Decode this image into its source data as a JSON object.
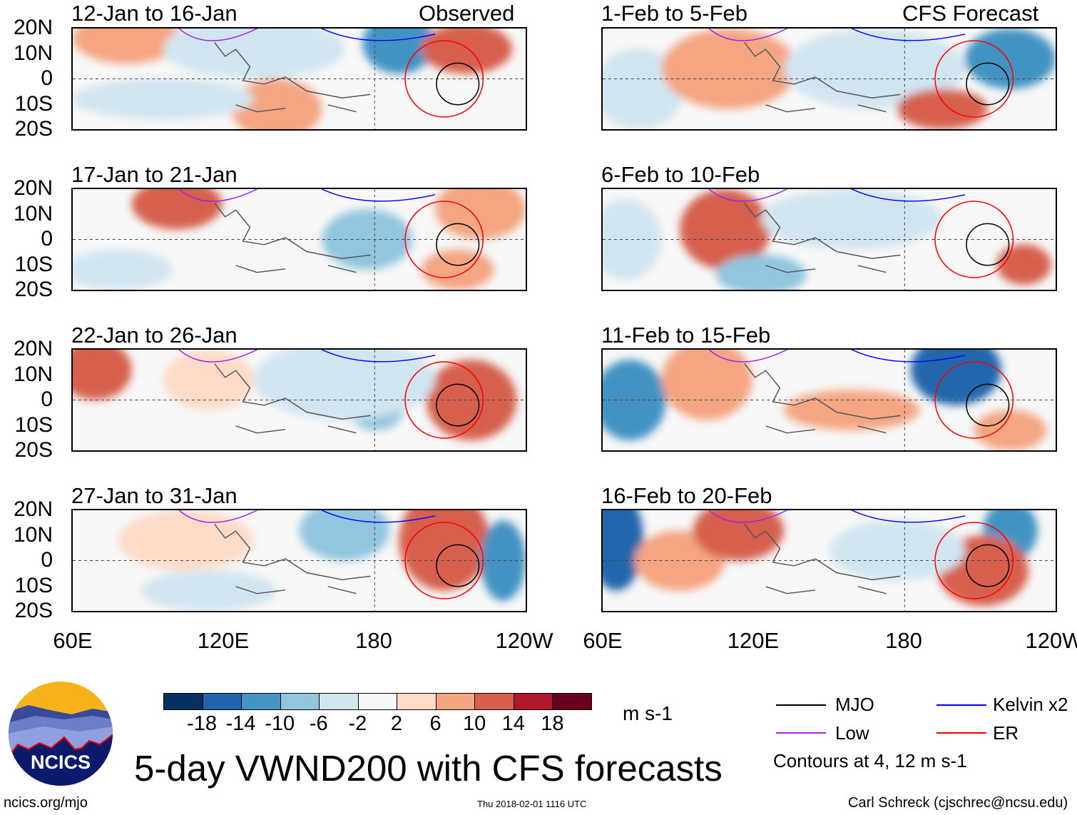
{
  "left_column": {
    "label": "Observed",
    "panels": [
      {
        "title": "12-Jan to 16-Jan"
      },
      {
        "title": "17-Jan to 21-Jan"
      },
      {
        "title": "22-Jan to 26-Jan"
      },
      {
        "title": "27-Jan to 31-Jan"
      }
    ]
  },
  "right_column": {
    "label": "CFS Forecast",
    "panels": [
      {
        "title": "1-Feb to 5-Feb"
      },
      {
        "title": "6-Feb to 10-Feb"
      },
      {
        "title": "11-Feb to 15-Feb"
      },
      {
        "title": "16-Feb to 20-Feb"
      }
    ]
  },
  "lat_labels": [
    "20N",
    "10N",
    "0",
    "10S",
    "20S"
  ],
  "lon_labels": [
    "60E",
    "120E",
    "180",
    "120W"
  ],
  "colorbar": {
    "labels": [
      "-18",
      "-14",
      "-10",
      "-6",
      "-2",
      "2",
      "6",
      "10",
      "14",
      "18"
    ],
    "colors": [
      "#053061",
      "#2166ac",
      "#4393c3",
      "#92c5de",
      "#d1e5f0",
      "#f7f7f7",
      "#fddbc7",
      "#f4a582",
      "#d6604d",
      "#b2182b",
      "#67001f"
    ],
    "units": "m s-1"
  },
  "legend": {
    "items": [
      {
        "label": "MJO",
        "color": "#000000"
      },
      {
        "label": "Kelvin x2",
        "color": "#0000ff"
      },
      {
        "label": "Low",
        "color": "#a020f0"
      },
      {
        "label": "ER",
        "color": "#ff0000"
      }
    ],
    "note": "Contours at 4, 12 m s-1"
  },
  "title": "5-day VWND200 with CFS forecasts",
  "logo_text": "NCICS",
  "footer": {
    "url": "ncics.org/mjo",
    "timestamp": "Thu 2018-02-01 1116 UTC",
    "credit": "Carl Schreck (cjschrec@ncsu.edu)"
  }
}
